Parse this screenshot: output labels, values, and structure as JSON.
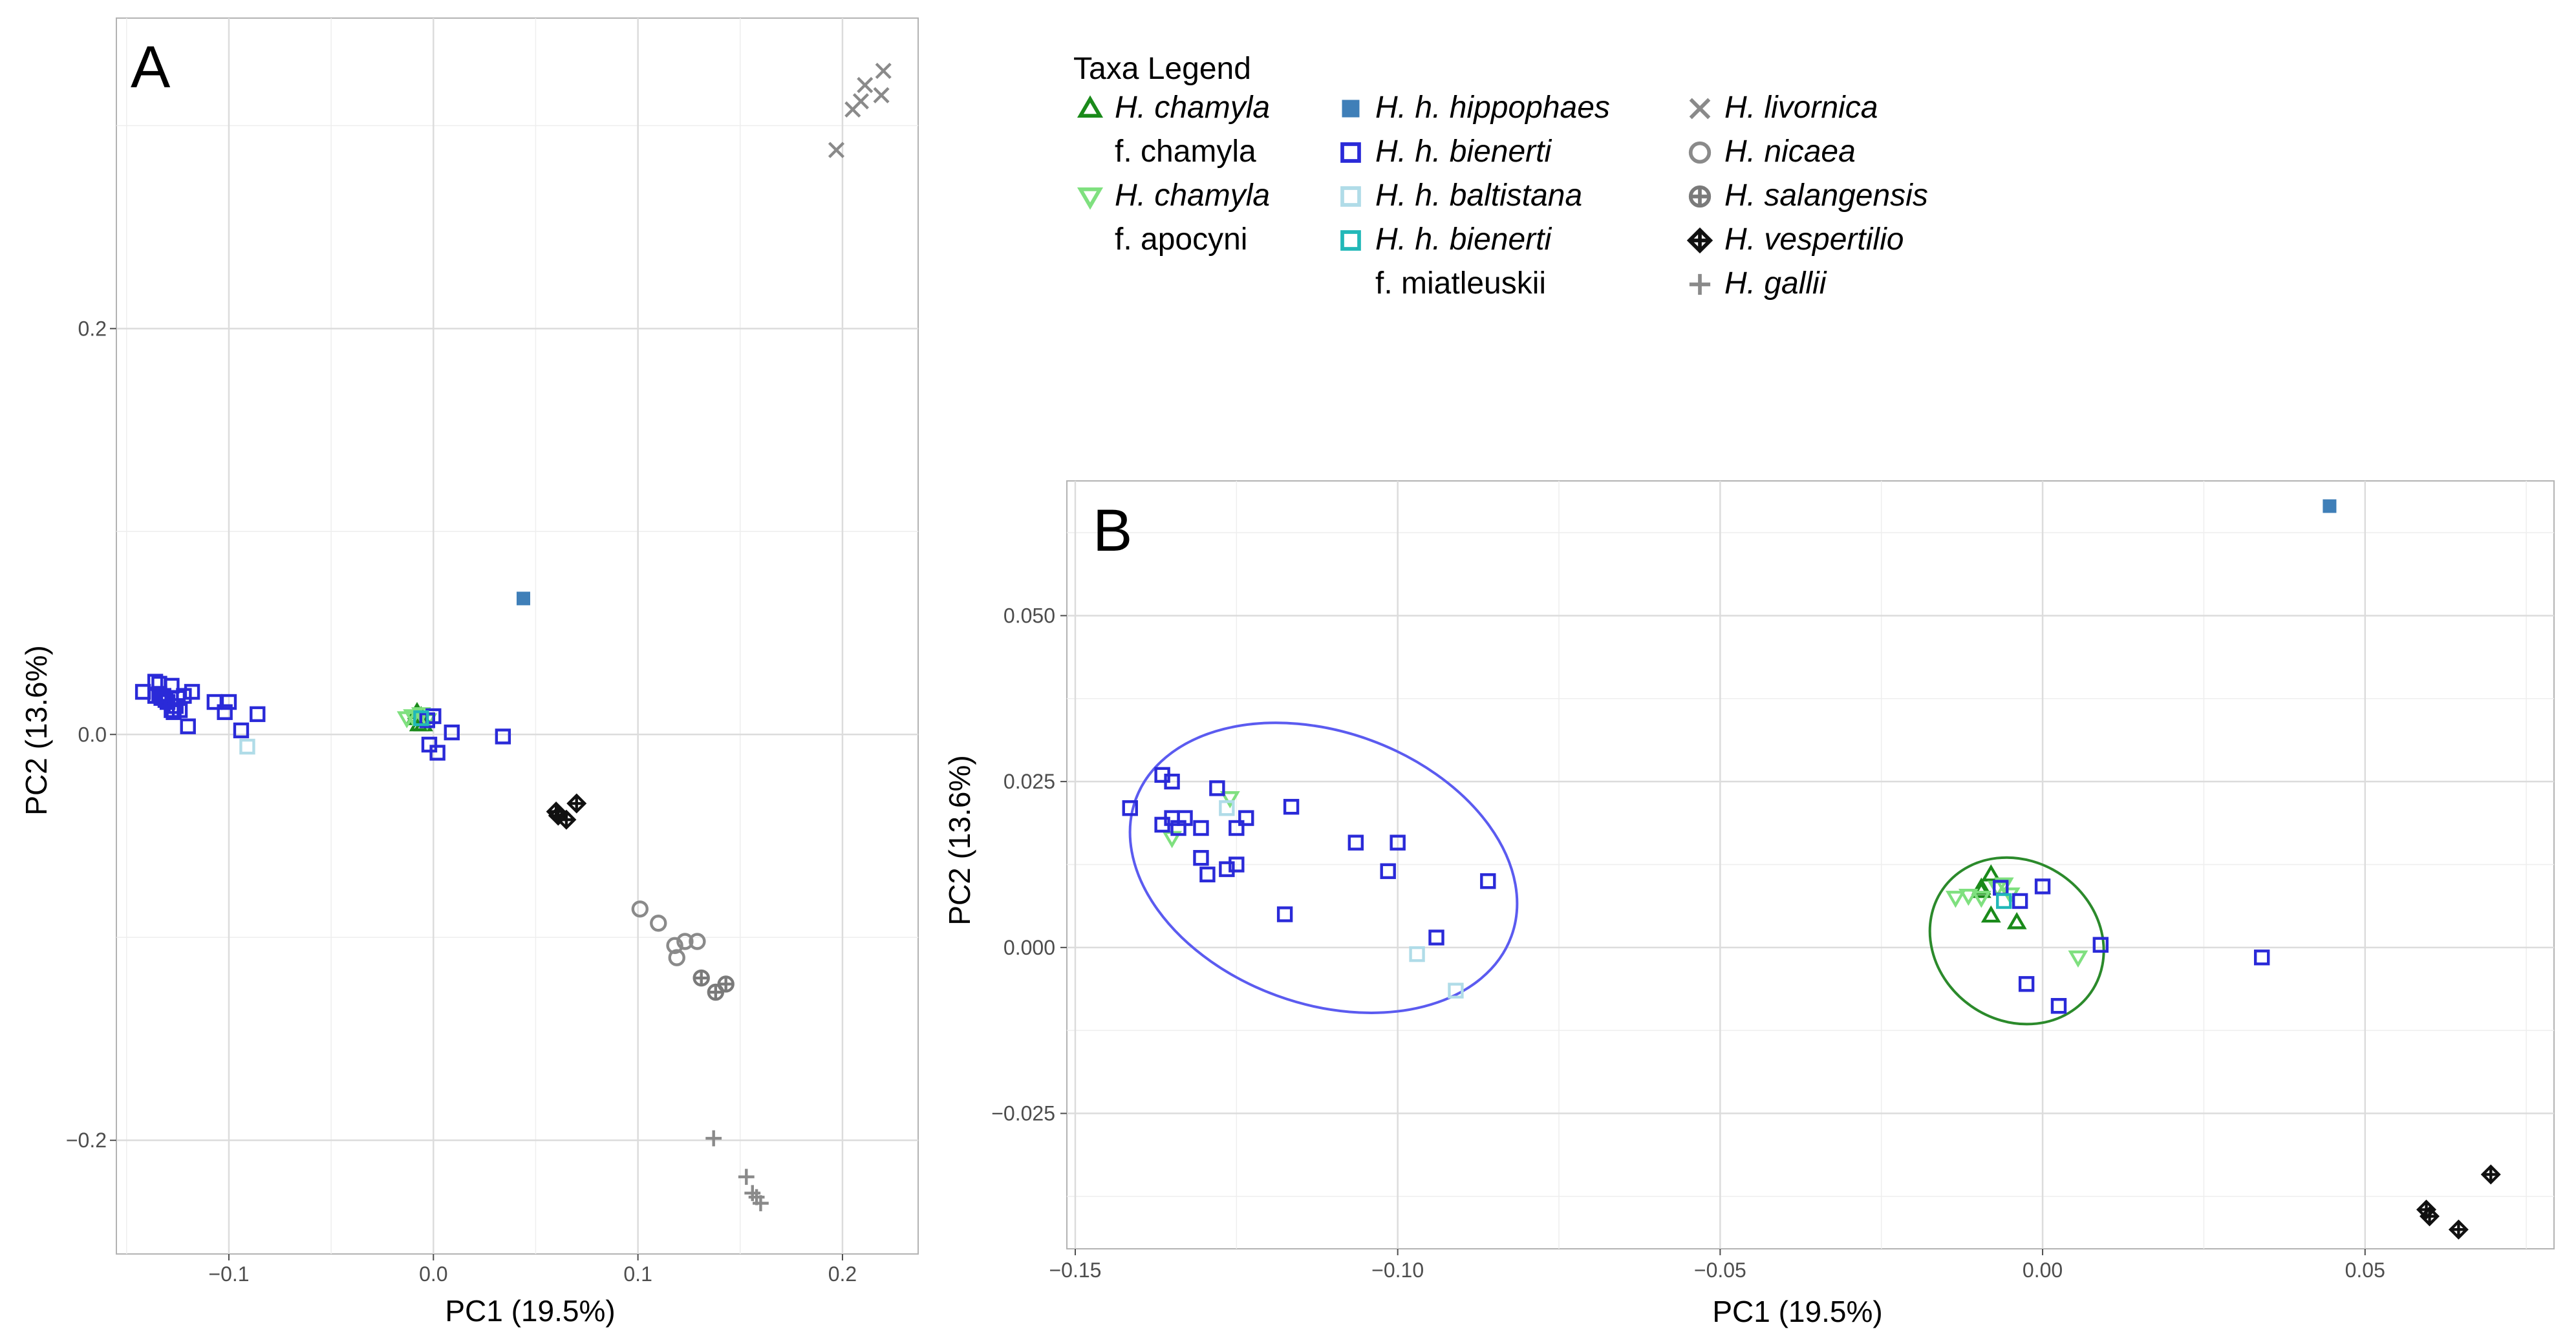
{
  "chart_data": [
    {
      "panel": "A",
      "type": "scatter",
      "xlabel": "PC1 (19.5%)",
      "ylabel": "PC2 (13.6%)",
      "xlim": [
        -0.155,
        0.237
      ],
      "ylim": [
        -0.256,
        0.353
      ],
      "xticks": [
        -0.1,
        0.0,
        0.1,
        0.2
      ],
      "xtick_labels": [
        "−0.1",
        "0.0",
        "0.1",
        "0.2"
      ],
      "yticks": [
        -0.2,
        0.0,
        0.2
      ],
      "ytick_labels": [
        "−0.2",
        "0.0",
        "0.2"
      ],
      "grid": true,
      "series": [
        {
          "key": "chamyla_f_chamyla",
          "points": [
            [
              -0.008,
              0.011
            ],
            [
              -0.006,
              0.009
            ],
            [
              -0.009,
              0.008
            ],
            [
              -0.005,
              0.005
            ],
            [
              -0.007,
              0.005
            ]
          ]
        },
        {
          "key": "chamyla_f_apocyni",
          "points": [
            [
              -0.013,
              0.008
            ],
            [
              -0.01,
              0.009
            ],
            [
              -0.006,
              0.01
            ],
            [
              -0.003,
              0.007
            ]
          ]
        },
        {
          "key": "hippophaes",
          "points": [
            [
              0.044,
              0.067
            ]
          ]
        },
        {
          "key": "bienerti",
          "points": [
            [
              -0.142,
              0.021
            ],
            [
              -0.136,
              0.026
            ],
            [
              -0.134,
              0.025
            ],
            [
              -0.136,
              0.019
            ],
            [
              -0.134,
              0.02
            ],
            [
              -0.133,
              0.018
            ],
            [
              -0.132,
              0.019
            ],
            [
              -0.131,
              0.017
            ],
            [
              -0.13,
              0.016
            ],
            [
              -0.128,
              0.024
            ],
            [
              -0.128,
              0.012
            ],
            [
              -0.127,
              0.011
            ],
            [
              -0.126,
              0.014
            ],
            [
              -0.125,
              0.018
            ],
            [
              -0.124,
              0.012
            ],
            [
              -0.122,
              0.019
            ],
            [
              -0.12,
              0.004
            ],
            [
              -0.118,
              0.021
            ],
            [
              -0.107,
              0.016
            ],
            [
              -0.102,
              0.011
            ],
            [
              -0.1,
              0.016
            ],
            [
              -0.094,
              0.002
            ],
            [
              -0.086,
              0.01
            ],
            [
              -0.003,
              0.007
            ],
            [
              -0.002,
              -0.005
            ],
            [
              0.0,
              0.009
            ],
            [
              0.002,
              -0.009
            ],
            [
              0.009,
              0.001
            ],
            [
              0.034,
              -0.001
            ]
          ]
        },
        {
          "key": "baltistana",
          "points": [
            [
              -0.091,
              -0.006
            ]
          ]
        },
        {
          "key": "bienerti_f_miatleuskii",
          "points": [
            [
              -0.006,
              0.008
            ]
          ]
        },
        {
          "key": "livornica",
          "points": [
            [
              0.197,
              0.288
            ],
            [
              0.205,
              0.308
            ],
            [
              0.209,
              0.312
            ],
            [
              0.211,
              0.32
            ],
            [
              0.219,
              0.315
            ],
            [
              0.22,
              0.327
            ]
          ]
        },
        {
          "key": "nicaea",
          "points": [
            [
              0.101,
              -0.086
            ],
            [
              0.11,
              -0.093
            ],
            [
              0.118,
              -0.104
            ],
            [
              0.119,
              -0.11
            ],
            [
              0.123,
              -0.102
            ],
            [
              0.129,
              -0.102
            ]
          ]
        },
        {
          "key": "salangensis",
          "points": [
            [
              0.131,
              -0.12
            ],
            [
              0.138,
              -0.127
            ],
            [
              0.143,
              -0.123
            ]
          ]
        },
        {
          "key": "vespertilio",
          "points": [
            [
              0.06,
              -0.038
            ],
            [
              0.061,
              -0.04
            ],
            [
              0.065,
              -0.042
            ],
            [
              0.07,
              -0.034
            ]
          ]
        },
        {
          "key": "gallii",
          "points": [
            [
              0.137,
              -0.199
            ],
            [
              0.153,
              -0.218
            ],
            [
              0.156,
              -0.226
            ],
            [
              0.158,
              -0.228
            ],
            [
              0.16,
              -0.231
            ]
          ]
        }
      ]
    },
    {
      "panel": "B",
      "type": "scatter",
      "xlabel": "PC1 (19.5%)",
      "ylabel": "PC2 (13.6%)",
      "xlim": [
        -0.1513,
        0.0793
      ],
      "ylim": [
        -0.0454,
        0.0703
      ],
      "xticks": [
        -0.15,
        -0.1,
        -0.05,
        0.0,
        0.05
      ],
      "xtick_labels": [
        "−0.15",
        "−0.10",
        "−0.05",
        "0.00",
        "0.05"
      ],
      "yticks": [
        -0.025,
        0.0,
        0.025,
        0.05
      ],
      "ytick_labels": [
        "−0.025",
        "0.000",
        "0.025",
        "0.050"
      ],
      "grid": true,
      "ellipses": [
        {
          "name": "bienerti-cluster",
          "color": "#5b5bf0",
          "cx": -0.1115,
          "cy": 0.012,
          "rx": 0.031,
          "ry": 0.0205,
          "rotate_deg": 20
        },
        {
          "name": "chamyla-cluster",
          "color": "#2b8a2b",
          "cx": -0.004,
          "cy": 0.001,
          "rx": 0.014,
          "ry": 0.012,
          "rotate_deg": 35
        }
      ],
      "series": [
        {
          "key": "chamyla_f_chamyla",
          "points": [
            [
              -0.008,
              0.011
            ],
            [
              -0.0095,
              0.0085
            ],
            [
              -0.0095,
              0.009
            ],
            [
              -0.008,
              0.0048
            ],
            [
              -0.004,
              0.0038
            ]
          ]
        },
        {
          "key": "chamyla_f_apocyni",
          "points": [
            [
              -0.135,
              0.0165
            ],
            [
              -0.126,
              0.0225
            ],
            [
              -0.0135,
              0.0075
            ],
            [
              -0.0115,
              0.0078
            ],
            [
              -0.0095,
              0.0075
            ],
            [
              -0.007,
              0.009
            ],
            [
              -0.006,
              0.0095
            ],
            [
              -0.005,
              0.008
            ],
            [
              0.0055,
              -0.0015
            ]
          ]
        },
        {
          "key": "hippophaes",
          "points": [
            [
              0.0445,
              0.0665
            ]
          ]
        },
        {
          "key": "bienerti",
          "points": [
            [
              -0.1415,
              0.021
            ],
            [
              -0.1365,
              0.026
            ],
            [
              -0.135,
              0.025
            ],
            [
              -0.1365,
              0.0185
            ],
            [
              -0.135,
              0.0195
            ],
            [
              -0.134,
              0.018
            ],
            [
              -0.133,
              0.0195
            ],
            [
              -0.1305,
              0.018
            ],
            [
              -0.1305,
              0.0135
            ],
            [
              -0.1295,
              0.011
            ],
            [
              -0.128,
              0.024
            ],
            [
              -0.1265,
              0.0118
            ],
            [
              -0.125,
              0.018
            ],
            [
              -0.125,
              0.0125
            ],
            [
              -0.1235,
              0.0195
            ],
            [
              -0.1175,
              0.005
            ],
            [
              -0.1165,
              0.0212
            ],
            [
              -0.1065,
              0.0158
            ],
            [
              -0.1015,
              0.0115
            ],
            [
              -0.1,
              0.0158
            ],
            [
              -0.094,
              0.0015
            ],
            [
              -0.086,
              0.01
            ],
            [
              -0.0065,
              0.009
            ],
            [
              -0.0035,
              0.007
            ],
            [
              -0.0025,
              -0.0055
            ],
            [
              0.0,
              0.0092
            ],
            [
              0.0025,
              -0.0088
            ],
            [
              0.009,
              0.0004
            ],
            [
              0.034,
              -0.0015
            ]
          ]
        },
        {
          "key": "baltistana",
          "points": [
            [
              -0.1265,
              0.021
            ],
            [
              -0.097,
              -0.001
            ],
            [
              -0.091,
              -0.0065
            ]
          ]
        },
        {
          "key": "bienerti_f_miatleuskii",
          "points": [
            [
              -0.006,
              0.007
            ]
          ]
        },
        {
          "key": "vespertilio",
          "points": [
            [
              0.0595,
              -0.0395
            ],
            [
              0.06,
              -0.0405
            ],
            [
              0.0645,
              -0.0425
            ],
            [
              0.0695,
              -0.0342
            ]
          ]
        }
      ]
    }
  ],
  "legend": {
    "title": "Taxa Legend",
    "columns": [
      [
        {
          "key": "chamyla_f_chamyla",
          "symbol": "triangle-up",
          "color": "#1a8a1a",
          "line1": "H. chamyla",
          "line2": "f. chamyla"
        },
        {
          "key": "chamyla_f_apocyni",
          "symbol": "triangle-down",
          "color": "#7fe07f",
          "line1": "H. chamyla",
          "line2": "f. apocyni"
        }
      ],
      [
        {
          "key": "hippophaes",
          "symbol": "square-filled",
          "color": "#3f7fb8",
          "line1": "H. h. hippophaes"
        },
        {
          "key": "bienerti",
          "symbol": "square",
          "color": "#2a2ad8",
          "line1": "H. h. bienerti"
        },
        {
          "key": "baltistana",
          "symbol": "square",
          "color": "#b0dce8",
          "line1": "H. h. baltistana"
        },
        {
          "key": "bienerti_f_miatleuskii",
          "symbol": "square",
          "color": "#22b8b8",
          "line1": "H. h. bienerti",
          "line2": "f. miatleuskii"
        }
      ],
      [
        {
          "key": "livornica",
          "symbol": "cross",
          "color": "#8a8a8a",
          "line1": "H. livornica"
        },
        {
          "key": "nicaea",
          "symbol": "circle",
          "color": "#8a8a8a",
          "line1": "H. nicaea"
        },
        {
          "key": "salangensis",
          "symbol": "circle-plus",
          "color": "#7a7a7a",
          "line1": "H. salangensis"
        },
        {
          "key": "vespertilio",
          "symbol": "diamond-plus",
          "color": "#111111",
          "line1": "H. vespertilio"
        },
        {
          "key": "gallii",
          "symbol": "plus",
          "color": "#8a8a8a",
          "line1": "H. gallii"
        }
      ]
    ]
  },
  "colors": {
    "panel_border": "#b3b3b3",
    "grid_major": "#dcdcdc",
    "grid_minor": "#eeeeee"
  }
}
